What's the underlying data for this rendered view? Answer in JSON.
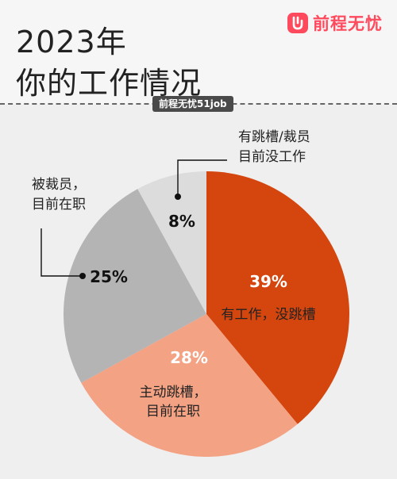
{
  "header": {
    "title_year": "2023年",
    "title_main": "你的工作情况",
    "brand_name": "前程无忧",
    "source_tag": "前程无忧51job"
  },
  "chart_data": {
    "type": "pie",
    "slices": [
      {
        "label": "有工作，没跳槽",
        "value": 39,
        "display": "39%",
        "color": "#d4460e"
      },
      {
        "label": "主动跳槽，\n目前在职",
        "value": 28,
        "display": "28%",
        "color": "#f3a284"
      },
      {
        "label": "被裁员，\n目前在职",
        "value": 25,
        "display": "25%",
        "color": "#b4b4b4"
      },
      {
        "label": "有跳槽/裁员\n目前没工作",
        "value": 8,
        "display": "8%",
        "color": "#dcdcdc"
      }
    ]
  }
}
